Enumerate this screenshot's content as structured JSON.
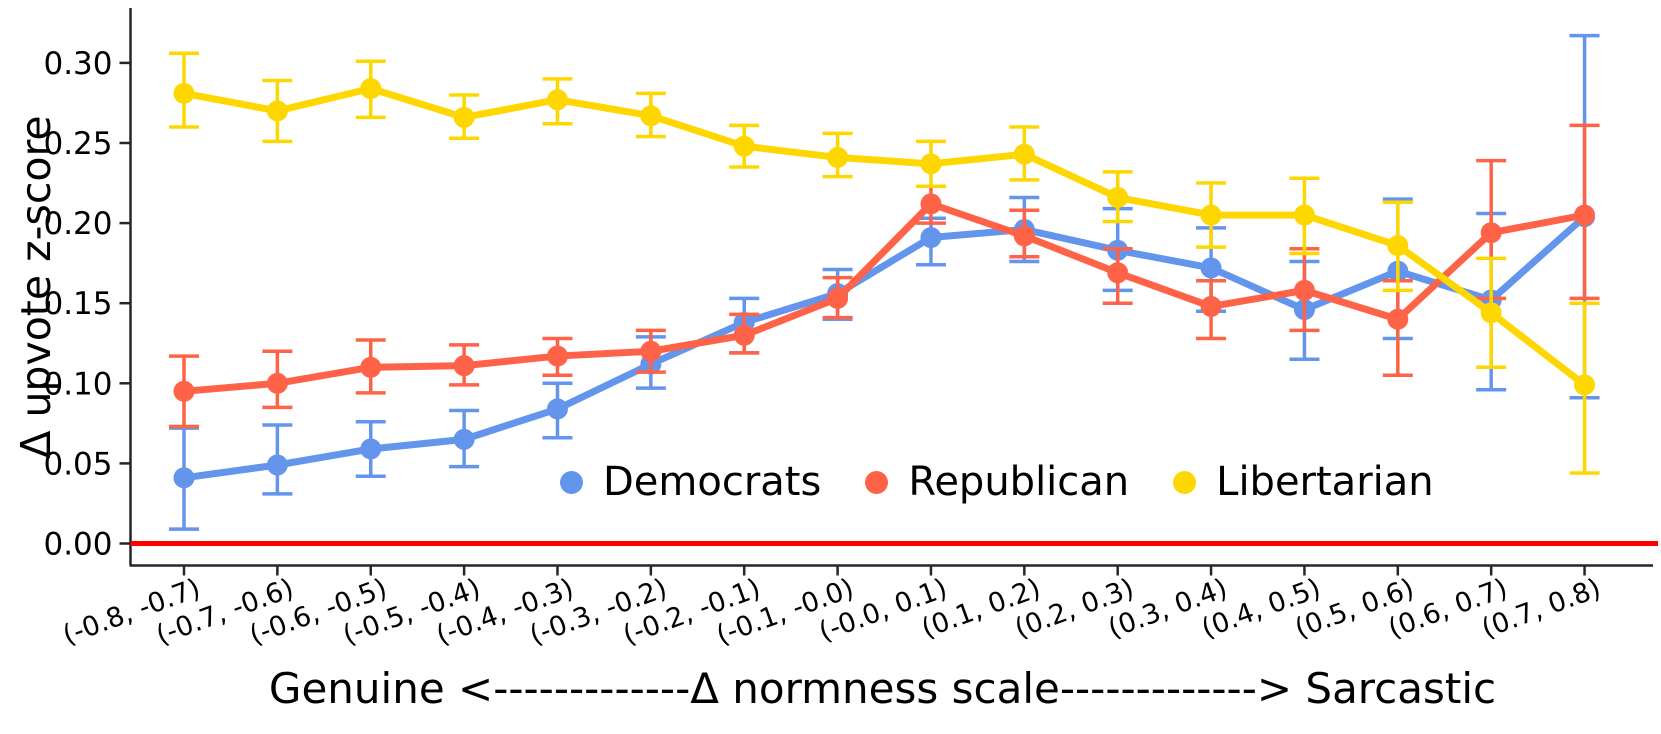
{
  "chart_data": {
    "type": "line",
    "title": "",
    "ylabel": "Δ upvote z-score",
    "xlabel": "Genuine <-------------Δ normness scale-------------> Sarcastic",
    "categories": [
      "(-0.8, -0.7)",
      "(-0.7, -0.6)",
      "(-0.6, -0.5)",
      "(-0.5, -0.4)",
      "(-0.4, -0.3)",
      "(-0.3, -0.2)",
      "(-0.2, -0.1)",
      "(-0.1, -0.0)",
      "(-0.0, 0.1)",
      "(0.1, 0.2)",
      "(0.2, 0.3)",
      "(0.3, 0.4)",
      "(0.4, 0.5)",
      "(0.5, 0.6)",
      "(0.6, 0.7)",
      "(0.7, 0.8)"
    ],
    "y_ticks": [
      "0.00",
      "0.05",
      "0.10",
      "0.15",
      "0.20",
      "0.25",
      "0.30"
    ],
    "ylim": [
      -0.035,
      0.335
    ],
    "grid": false,
    "zero_line_color": "#ff0000",
    "legend_position": "lower center inside plot",
    "series": [
      {
        "name": "Democrats",
        "color": "#6495ED",
        "values": [
          0.041,
          0.049,
          0.059,
          0.065,
          0.084,
          0.112,
          0.138,
          0.156,
          0.191,
          0.196,
          0.183,
          0.172,
          0.146,
          0.17,
          0.152,
          0.204
        ],
        "err_lo": [
          0.009,
          0.031,
          0.042,
          0.048,
          0.066,
          0.097,
          0.119,
          0.14,
          0.174,
          0.176,
          0.158,
          0.145,
          0.115,
          0.128,
          0.096,
          0.091
        ],
        "err_hi": [
          0.072,
          0.074,
          0.076,
          0.083,
          0.1,
          0.129,
          0.153,
          0.171,
          0.203,
          0.216,
          0.209,
          0.197,
          0.176,
          0.215,
          0.206,
          0.317
        ]
      },
      {
        "name": "Republican",
        "color": "#FF6347",
        "values": [
          0.095,
          0.1,
          0.11,
          0.111,
          0.117,
          0.12,
          0.13,
          0.153,
          0.212,
          0.192,
          0.169,
          0.148,
          0.158,
          0.14,
          0.194,
          0.205
        ],
        "err_lo": [
          0.073,
          0.085,
          0.094,
          0.099,
          0.105,
          0.107,
          0.119,
          0.141,
          0.2,
          0.179,
          0.15,
          0.128,
          0.133,
          0.105,
          0.153,
          0.153
        ],
        "err_hi": [
          0.117,
          0.12,
          0.127,
          0.124,
          0.128,
          0.133,
          0.143,
          0.166,
          0.223,
          0.208,
          0.184,
          0.164,
          0.184,
          0.164,
          0.239,
          0.261
        ]
      },
      {
        "name": "Libertarian",
        "color": "#FFD700",
        "values": [
          0.281,
          0.27,
          0.284,
          0.266,
          0.277,
          0.267,
          0.248,
          0.241,
          0.237,
          0.243,
          0.216,
          0.205,
          0.205,
          0.186,
          0.144,
          0.099
        ],
        "err_lo": [
          0.26,
          0.251,
          0.266,
          0.253,
          0.262,
          0.254,
          0.235,
          0.229,
          0.223,
          0.227,
          0.201,
          0.185,
          0.181,
          0.158,
          0.11,
          0.044
        ],
        "err_hi": [
          0.306,
          0.289,
          0.301,
          0.28,
          0.29,
          0.281,
          0.261,
          0.256,
          0.251,
          0.26,
          0.232,
          0.225,
          0.228,
          0.213,
          0.178,
          0.15
        ]
      }
    ]
  }
}
